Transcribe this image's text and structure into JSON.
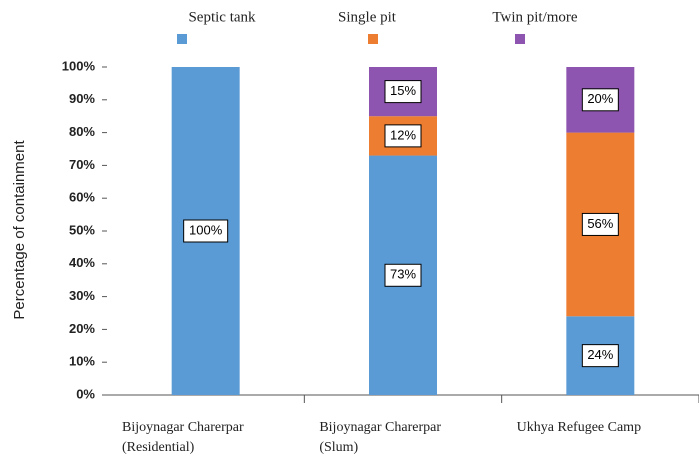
{
  "chart_data": {
    "type": "stacked_bar",
    "categories": [
      "Bijoynagar Charerpar\n(Residential)",
      "Bijoynagar Charerpar\n(Slum)",
      "Ukhya Refugee Camp"
    ],
    "series": [
      {
        "name": "Septic tank",
        "color": "#5b9bd5",
        "values": [
          100,
          73,
          24
        ],
        "value_labels": [
          "100%",
          "73%",
          "24%"
        ]
      },
      {
        "name": "Single pit",
        "color": "#ed7d31",
        "values": [
          0,
          12,
          56
        ],
        "value_labels": [
          null,
          "12%",
          "56%"
        ]
      },
      {
        "name": "Twin pit/more",
        "color": "#8e55b0",
        "values": [
          0,
          15,
          20
        ],
        "value_labels": [
          null,
          "15%",
          "20%"
        ]
      }
    ],
    "y_label": "Percentage of containment",
    "ylim": [
      0,
      100
    ],
    "yticks": [
      {
        "value": 0,
        "label": "0%"
      },
      {
        "value": 10,
        "label": "10%"
      },
      {
        "value": 20,
        "label": "20%"
      },
      {
        "value": 30,
        "label": "30%"
      },
      {
        "value": 40,
        "label": "40%"
      },
      {
        "value": 50,
        "label": "50%"
      },
      {
        "value": 60,
        "label": "60%"
      },
      {
        "value": 70,
        "label": "70%"
      },
      {
        "value": 80,
        "label": "80%"
      },
      {
        "value": 90,
        "label": "90%"
      },
      {
        "value": 100,
        "label": "100%"
      }
    ],
    "grid": false
  }
}
